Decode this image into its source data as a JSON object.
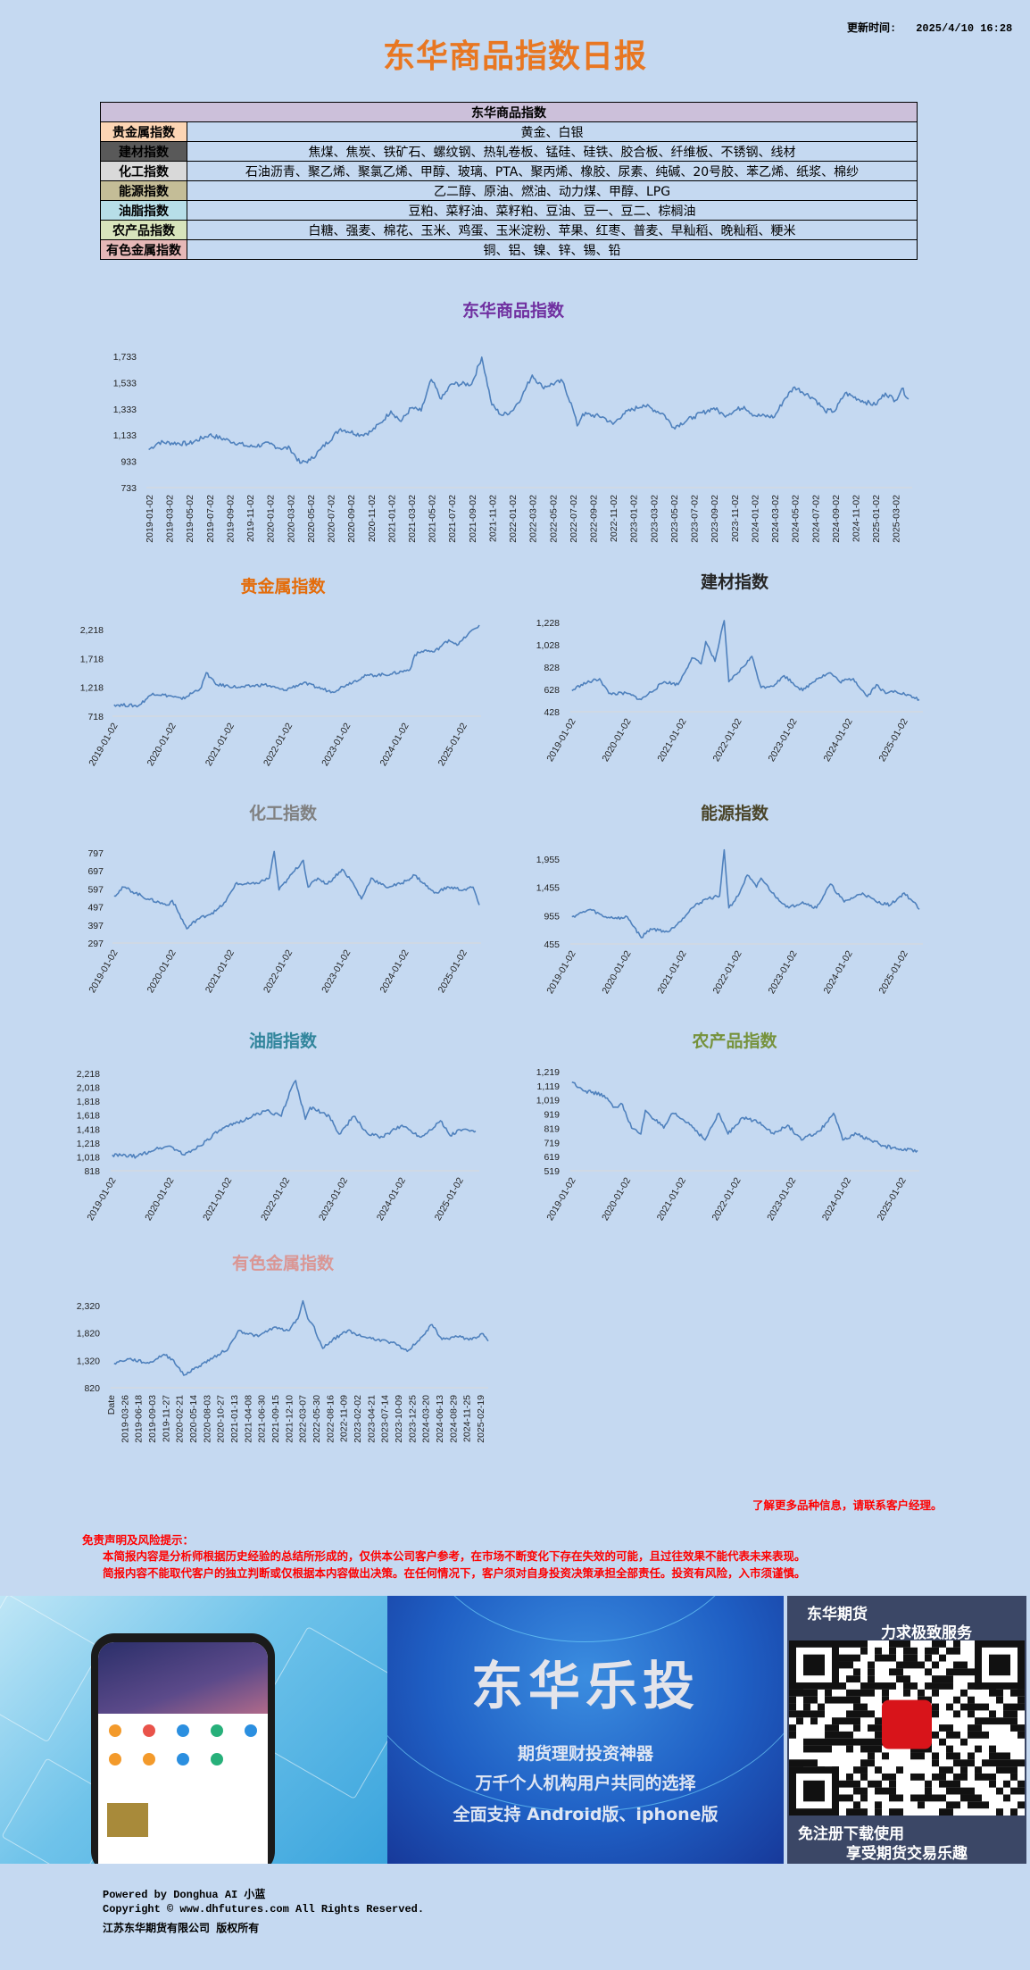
{
  "header": {
    "update_label": "更新时间:",
    "update_value": "2025/4/10 16:28",
    "title": "东华商品指数日报"
  },
  "colors": {
    "background": "#c5d9f1",
    "line": "#4f81bd",
    "title": "#e87722",
    "disclaimer": "#ff0000"
  },
  "table": {
    "header": "东华商品指数",
    "rows": [
      {
        "label": "贵金属指数",
        "items": "黄金、白银",
        "color": "#fcd5b4"
      },
      {
        "label": "建材指数",
        "items": "焦煤、焦炭、铁矿石、螺纹钢、热轧卷板、锰硅、硅铁、胶合板、纤维板、不锈钢、线材",
        "color": "#595959"
      },
      {
        "label": "化工指数",
        "items": "石油沥青、聚乙烯、聚氯乙烯、甲醇、玻璃、PTA、聚丙烯、橡胶、尿素、纯碱、20号胶、苯乙烯、纸浆、棉纱",
        "color": "#d9d9d9"
      },
      {
        "label": "能源指数",
        "items": "乙二醇、原油、燃油、动力煤、甲醇、LPG",
        "color": "#c4bd97"
      },
      {
        "label": "油脂指数",
        "items": "豆粕、菜籽油、菜籽粕、豆油、豆一、豆二、棕榈油",
        "color": "#b7dee8"
      },
      {
        "label": "农产品指数",
        "items": "白糖、强麦、棉花、玉米、鸡蛋、玉米淀粉、苹果、红枣、普麦、早籼稻、晚籼稻、粳米",
        "color": "#d8e4bc"
      },
      {
        "label": "有色金属指数",
        "items": "铜、铝、镍、锌、锡、铅",
        "color": "#e6b8b7"
      }
    ]
  },
  "chart_data": [
    {
      "type": "line",
      "title": "东华商品指数",
      "title_color": "#7030a0",
      "ylim": [
        733,
        1733
      ],
      "yticks": [
        "733",
        "933",
        "1,133",
        "1,333",
        "1,533",
        "1,733"
      ],
      "xticks": [
        "2019-01-02",
        "2019-03-02",
        "2019-05-02",
        "2019-07-02",
        "2019-09-02",
        "2019-11-02",
        "2020-01-02",
        "2020-03-02",
        "2020-05-02",
        "2020-07-02",
        "2020-09-02",
        "2020-11-02",
        "2021-01-02",
        "2021-03-02",
        "2021-05-02",
        "2021-07-02",
        "2021-09-02",
        "2021-11-02",
        "2022-01-02",
        "2022-03-02",
        "2022-05-02",
        "2022-07-02",
        "2022-09-02",
        "2022-11-02",
        "2023-01-02",
        "2023-03-02",
        "2023-05-02",
        "2023-07-02",
        "2023-09-02",
        "2023-11-02",
        "2024-01-02",
        "2024-03-02",
        "2024-05-02",
        "2024-07-02",
        "2024-09-02",
        "2024-11-02",
        "2025-01-02",
        "2025-03-02"
      ],
      "x": [
        "2019-01",
        "2019-02",
        "2019-05",
        "2019-07",
        "2019-09",
        "2019-11",
        "2020-01",
        "2020-02",
        "2020-03",
        "2020-04",
        "2020-05",
        "2020-06",
        "2020-08",
        "2020-10",
        "2020-11",
        "2020-12",
        "2021-01",
        "2021-02",
        "2021-03",
        "2021-04",
        "2021-05",
        "2021-06",
        "2021-07",
        "2021-09",
        "2021-10",
        "2021-11",
        "2021-12",
        "2022-01",
        "2022-02",
        "2022-03",
        "2022-04",
        "2022-06",
        "2022-07",
        "2022-07-15",
        "2022-08",
        "2022-10",
        "2022-11",
        "2022-12",
        "2023-02",
        "2023-04",
        "2023-05",
        "2023-07",
        "2023-09",
        "2023-10",
        "2023-12",
        "2024-01",
        "2024-03",
        "2024-04",
        "2024-05",
        "2024-07",
        "2024-08",
        "2024-09",
        "2024-10",
        "2024-12",
        "2025-01",
        "2025-02",
        "2025-03",
        "2025-03-20",
        "2025-04-10"
      ],
      "y": [
        1022,
        1078,
        1067,
        1135,
        1090,
        1044,
        1067,
        1033,
        1033,
        919,
        942,
        1022,
        1181,
        1135,
        1158,
        1226,
        1317,
        1237,
        1340,
        1317,
        1556,
        1408,
        1522,
        1522,
        1726,
        1363,
        1283,
        1317,
        1431,
        1590,
        1499,
        1544,
        1340,
        1203,
        1294,
        1272,
        1215,
        1294,
        1363,
        1294,
        1192,
        1272,
        1340,
        1283,
        1351,
        1283,
        1272,
        1408,
        1499,
        1408,
        1317,
        1317,
        1453,
        1385,
        1363,
        1453,
        1397,
        1488,
        1408
      ]
    },
    {
      "type": "line",
      "title": "贵金属指数",
      "title_color": "#e46c0a",
      "ylim": [
        718,
        2218
      ],
      "yticks": [
        "718",
        "1,218",
        "1,718",
        "2,218"
      ],
      "xticks": [
        "2019-01-02",
        "2020-01-02",
        "2021-01-02",
        "2022-01-02",
        "2023-01-02",
        "2024-01-02",
        "2025-01-02"
      ],
      "x": [
        "2019-01",
        "2019-06",
        "2019-09",
        "2020-01",
        "2020-03",
        "2020-07",
        "2020-08",
        "2020-10",
        "2021-03",
        "2021-08",
        "2021-12",
        "2022-04",
        "2022-10",
        "2023-01",
        "2023-05",
        "2023-10",
        "2024-02",
        "2024-03",
        "2024-05",
        "2024-07",
        "2024-10",
        "2024-12",
        "2025-02",
        "2025-04-10"
      ],
      "y": [
        918,
        898,
        1114,
        1062,
        1011,
        1216,
        1473,
        1267,
        1216,
        1267,
        1165,
        1293,
        1139,
        1267,
        1421,
        1447,
        1524,
        1781,
        1858,
        1832,
        2038,
        1961,
        2141,
        2295
      ]
    },
    {
      "type": "line",
      "title": "建材指数",
      "title_color": "#262626",
      "ylim": [
        428,
        1228
      ],
      "yticks": [
        "428",
        "628",
        "828",
        "1,028",
        "1,228"
      ],
      "xticks": [
        "2019-01-02",
        "2020-01-02",
        "2021-01-02",
        "2022-01-02",
        "2023-01-02",
        "2024-01-02",
        "2025-01-02"
      ],
      "x": [
        "2019-01",
        "2019-03",
        "2019-07",
        "2019-09",
        "2020-01",
        "2020-04",
        "2020-09",
        "2020-12",
        "2021-03",
        "2021-05",
        "2021-06",
        "2021-08",
        "2021-10",
        "2021-11",
        "2022-01",
        "2022-04",
        "2022-06",
        "2022-09",
        "2022-11",
        "2023-03",
        "2023-06",
        "2023-09",
        "2023-11",
        "2024-02",
        "2024-05",
        "2024-07",
        "2024-09",
        "2024-11",
        "2025-04-10"
      ],
      "y": [
        617,
        671,
        724,
        591,
        591,
        537,
        697,
        671,
        911,
        857,
        1057,
        879,
        1244,
        697,
        777,
        924,
        644,
        671,
        751,
        617,
        724,
        777,
        697,
        724,
        564,
        671,
        591,
        617,
        537
      ]
    },
    {
      "type": "line",
      "title": "化工指数",
      "title_color": "#808080",
      "ylim": [
        297,
        797
      ],
      "yticks": [
        "297",
        "397",
        "497",
        "597",
        "697",
        "797"
      ],
      "xticks": [
        "2019-01-02",
        "2020-01-02",
        "2021-01-02",
        "2022-01-02",
        "2023-01-02",
        "2024-01-02",
        "2025-01-02"
      ],
      "x": [
        "2019-01",
        "2019-03",
        "2019-08",
        "2019-12",
        "2020-01",
        "2020-04",
        "2020-06",
        "2020-10",
        "2020-12",
        "2021-02",
        "2021-06",
        "2021-09",
        "2021-10",
        "2021-11",
        "2022-01",
        "2022-04",
        "2022-05",
        "2022-07",
        "2022-09",
        "2022-12",
        "2023-02",
        "2023-04",
        "2023-06",
        "2023-09",
        "2023-12",
        "2024-03",
        "2024-07",
        "2024-10",
        "2025-01",
        "2025-03",
        "2025-04-10"
      ],
      "y": [
        558,
        607,
        541,
        508,
        533,
        376,
        426,
        475,
        525,
        624,
        624,
        657,
        805,
        591,
        657,
        756,
        607,
        657,
        624,
        706,
        640,
        541,
        657,
        607,
        624,
        673,
        574,
        607,
        591,
        607,
        508
      ]
    },
    {
      "type": "line",
      "title": "能源指数",
      "title_color": "#4a452a",
      "ylim": [
        455,
        1955
      ],
      "yticks": [
        "455",
        "955",
        "1,455",
        "1,955"
      ],
      "xticks": [
        "2019-01-02",
        "2020-01-02",
        "2021-01-02",
        "2022-01-02",
        "2023-01-02",
        "2024-01-02",
        "2025-01-02"
      ],
      "x": [
        "2019-01",
        "2019-05",
        "2019-08",
        "2019-12",
        "2020-01",
        "2020-04",
        "2020-06",
        "2020-10",
        "2021-01",
        "2021-03",
        "2021-06",
        "2021-09",
        "2021-10",
        "2021-11",
        "2022-01",
        "2022-03",
        "2022-05",
        "2022-06",
        "2022-09",
        "2022-12",
        "2023-03",
        "2023-06",
        "2023-09",
        "2023-12",
        "2024-04",
        "2024-07",
        "2024-10",
        "2025-01",
        "2025-03",
        "2025-04-10"
      ],
      "y": [
        934,
        1066,
        934,
        908,
        934,
        566,
        723,
        671,
        908,
        1092,
        1250,
        1302,
        2118,
        1092,
        1302,
        1671,
        1460,
        1618,
        1302,
        1092,
        1197,
        1092,
        1513,
        1197,
        1355,
        1197,
        1144,
        1355,
        1197,
        1066
      ]
    },
    {
      "type": "line",
      "title": "油脂指数",
      "title_color": "#31859c",
      "ylim": [
        818,
        2218
      ],
      "yticks": [
        "818",
        "1,018",
        "1,218",
        "1,418",
        "1,618",
        "1,818",
        "2,018",
        "2,218"
      ],
      "xticks": [
        "2019-01-02",
        "2020-01-02",
        "2021-01-02",
        "2022-01-02",
        "2023-01-02",
        "2024-01-02",
        "2025-01-02"
      ],
      "x": [
        "2019-01",
        "2019-06",
        "2019-10",
        "2020-01",
        "2020-04",
        "2020-07",
        "2020-11",
        "2021-03",
        "2021-06",
        "2021-09",
        "2021-12",
        "2022-02",
        "2022-03",
        "2022-05",
        "2022-06",
        "2022-10",
        "2022-12",
        "2023-03",
        "2023-06",
        "2023-09",
        "2024-01",
        "2024-05",
        "2024-09",
        "2024-11",
        "2025-01",
        "2025-04-10"
      ],
      "y": [
        1045,
        1023,
        1131,
        1173,
        1045,
        1173,
        1387,
        1516,
        1601,
        1687,
        1601,
        1987,
        2115,
        1559,
        1730,
        1601,
        1345,
        1601,
        1345,
        1302,
        1473,
        1302,
        1537,
        1323,
        1409,
        1387
      ]
    },
    {
      "type": "line",
      "title": "农产品指数",
      "title_color": "#76923c",
      "ylim": [
        519,
        1219
      ],
      "yticks": [
        "519",
        "619",
        "719",
        "819",
        "919",
        "1,019",
        "1,119",
        "1,219"
      ],
      "xticks": [
        "2019-01-02",
        "2020-01-02",
        "2021-01-02",
        "2022-01-02",
        "2023-01-02",
        "2024-01-02",
        "2025-01-02"
      ],
      "x": [
        "2019-01",
        "2019-04",
        "2019-08",
        "2019-10",
        "2019-12",
        "2020-02",
        "2020-04",
        "2020-05",
        "2020-09",
        "2020-11",
        "2021-03",
        "2021-06",
        "2021-09",
        "2021-11",
        "2022-02",
        "2022-06",
        "2022-09",
        "2022-12",
        "2023-03",
        "2023-07",
        "2023-10",
        "2023-12",
        "2024-03",
        "2024-06",
        "2024-09",
        "2024-12",
        "2025-04-10"
      ],
      "y": [
        1145,
        1082,
        1051,
        967,
        988,
        820,
        778,
        946,
        820,
        925,
        841,
        736,
        925,
        778,
        893,
        862,
        778,
        841,
        736,
        799,
        925,
        736,
        778,
        736,
        694,
        673,
        662
      ]
    },
    {
      "type": "line",
      "title": "有色金属指数",
      "title_color": "#da9694",
      "ylim": [
        820,
        2320
      ],
      "yticks": [
        "820",
        "1,320",
        "1,820",
        "2,320"
      ],
      "xticks": [
        "Date",
        "2019-03-26",
        "2019-06-18",
        "2019-09-03",
        "2019-11-27",
        "2020-02-21",
        "2020-05-14",
        "2020-08-03",
        "2020-10-27",
        "2021-01-13",
        "2021-04-08",
        "2021-06-30",
        "2021-09-15",
        "2021-12-10",
        "2022-03-07",
        "2022-05-30",
        "2022-08-16",
        "2022-11-09",
        "2023-02-02",
        "2023-04-21",
        "2023-07-14",
        "2023-10-09",
        "2023-12-25",
        "2024-03-20",
        "2024-06-13",
        "2024-08-29",
        "2024-11-25",
        "2025-02-19"
      ],
      "x": [
        "2019-01",
        "2019-04",
        "2019-08",
        "2019-11",
        "2020-01",
        "2020-03",
        "2020-05",
        "2020-09",
        "2020-12",
        "2021-01",
        "2021-02",
        "2021-06",
        "2021-09",
        "2021-12",
        "2022-02",
        "2022-03",
        "2022-04",
        "2022-05",
        "2022-07",
        "2022-09",
        "2022-12",
        "2023-03",
        "2023-06",
        "2023-09",
        "2023-12",
        "2024-03",
        "2024-05",
        "2024-07",
        "2024-10",
        "2025-01",
        "2025-03",
        "2025-04-10"
      ],
      "y": [
        1266,
        1347,
        1266,
        1429,
        1320,
        1048,
        1157,
        1374,
        1537,
        1700,
        1863,
        1755,
        1918,
        1863,
        2081,
        2407,
        2081,
        1972,
        1537,
        1700,
        1863,
        1755,
        1700,
        1646,
        1483,
        1755,
        1972,
        1700,
        1755,
        1700,
        1809,
        1673
      ]
    }
  ],
  "notes": {
    "contact": "了解更多品种信息，请联系客户经理。",
    "disclaimer_title": "免责声明及风险提示：",
    "disclaimer_lines": [
      "本简报内容是分析师根据历史经验的总结所形成的，仅供本公司客户参考，在市场不断变化下存在失效的可能，且过往效果不能代表未来表现。",
      "简报内容不能取代客户的独立判断或仅根据本内容做出决策。在任何情况下，客户须对自身投资决策承担全部责任。投资有风险，入市须谨慎。"
    ]
  },
  "banner": {
    "title": "东华乐投",
    "line1": "期货理财投资神器",
    "line2": "万千个人机构用户共同的选择",
    "line3": "全面支持  Android版、iphone版",
    "qr_top1": "东华期货",
    "qr_top2": "力求极致服务",
    "qr_bottom1": "免注册下载使用",
    "qr_bottom2": "享受期货交易乐趣"
  },
  "footer": {
    "powered": "Powered by Donghua AI 小蓝",
    "copyright": "Copyright © www.dhfutures.com  All Rights Reserved.",
    "company": "江苏东华期货有限公司   版权所有"
  }
}
